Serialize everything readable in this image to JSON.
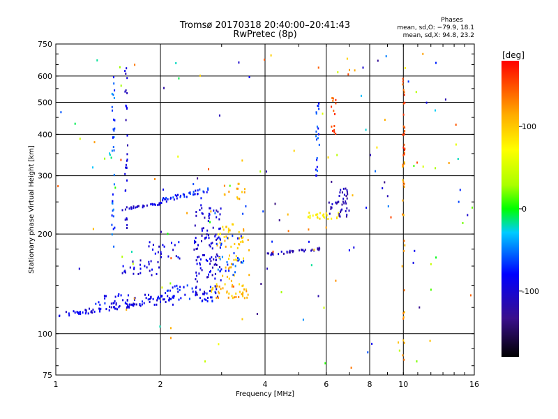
{
  "chart_data": {
    "type": "scatter",
    "title": "Tromsø 20170318 20:40:00–20:41:43",
    "subtitle": "RwPretec (8p)",
    "xlabel": "Frequency [MHz]",
    "ylabel": "Stationary phase Virtual Height [km]",
    "xscale": "log",
    "yscale": "log",
    "xlim": [
      1,
      16
    ],
    "ylim": [
      75,
      750
    ],
    "x_ticks": [
      1,
      2,
      4,
      6,
      8,
      10,
      16
    ],
    "y_ticks": [
      75,
      100,
      200,
      300,
      400,
      500,
      600,
      750
    ],
    "x_gridlines": [
      2,
      4,
      6,
      8,
      10
    ],
    "y_gridlines": [
      100,
      200,
      300,
      400,
      500,
      600
    ],
    "stats": {
      "title": "Phases",
      "line1": "mean, sd,O: −79.9, 18.1",
      "line2": "mean, sd,X: 94.8, 23.2"
    },
    "colorbar": {
      "label": "[deg]",
      "range": [
        -180,
        180
      ],
      "ticks": [
        -100,
        0,
        100
      ]
    },
    "point_groups": [
      {
        "x": [
          1.02,
          1.8
        ],
        "y": [
          112,
          125
        ],
        "phase": -95,
        "n": 60,
        "shape": "ramp"
      },
      {
        "x": [
          1.3,
          2.2
        ],
        "y": [
          122,
          132
        ],
        "phase": -88,
        "n": 60,
        "shape": "band"
      },
      {
        "x": [
          1.55,
          2.0
        ],
        "y": [
          150,
          168
        ],
        "phase": -95,
        "n": 25,
        "shape": "band"
      },
      {
        "x": [
          1.85,
          2.3
        ],
        "y": [
          165,
          190
        ],
        "phase": -90,
        "n": 20,
        "shape": "band"
      },
      {
        "x": [
          2.0,
          2.9
        ],
        "y": [
          125,
          140
        ],
        "phase": -80,
        "n": 50,
        "shape": "band"
      },
      {
        "x": [
          1.55,
          2.05
        ],
        "y": [
          236,
          250
        ],
        "phase": -100,
        "n": 30,
        "shape": "ramp"
      },
      {
        "x": [
          2.0,
          2.8
        ],
        "y": [
          248,
          278
        ],
        "phase": -75,
        "n": 40,
        "shape": "ramp"
      },
      {
        "x": [
          2.5,
          3.0
        ],
        "y": [
          128,
          245
        ],
        "phase": -100,
        "n": 110,
        "shape": "band"
      },
      {
        "x": [
          2.8,
          3.6
        ],
        "y": [
          128,
          140
        ],
        "phase": 110,
        "n": 40,
        "shape": "band"
      },
      {
        "x": [
          2.9,
          3.6
        ],
        "y": [
          140,
          215
        ],
        "phase": 100,
        "n": 60,
        "shape": "band"
      },
      {
        "x": [
          2.9,
          3.5
        ],
        "y": [
          150,
          200
        ],
        "phase": -60,
        "n": 30,
        "shape": "band"
      },
      {
        "x": [
          3.0,
          3.5
        ],
        "y": [
          255,
          285
        ],
        "phase": 110,
        "n": 14,
        "shape": "band"
      },
      {
        "x": [
          4.0,
          5.8
        ],
        "y": [
          172,
          182
        ],
        "phase": -110,
        "n": 35,
        "shape": "ramp"
      },
      {
        "x": [
          5.3,
          6.6
        ],
        "y": [
          222,
          232
        ],
        "phase": 80,
        "n": 25,
        "shape": "band"
      },
      {
        "x": [
          6.1,
          7.0
        ],
        "y": [
          225,
          275
        ],
        "phase": -115,
        "n": 40,
        "shape": "band"
      },
      {
        "x": [
          1.45,
          1.48
        ],
        "y": [
          180,
          640
        ],
        "phase": -60,
        "n": 35,
        "shape": "band"
      },
      {
        "x": [
          1.58,
          1.61
        ],
        "y": [
          200,
          640
        ],
        "phase": -100,
        "n": 30,
        "shape": "band"
      },
      {
        "x": [
          5.6,
          5.75
        ],
        "y": [
          300,
          500
        ],
        "phase": -70,
        "n": 22,
        "shape": "band"
      },
      {
        "x": [
          6.2,
          6.4
        ],
        "y": [
          400,
          520
        ],
        "phase": 150,
        "n": 14,
        "shape": "band"
      },
      {
        "x": [
          9.95,
          10.1
        ],
        "y": [
          340,
          600
        ],
        "phase": 155,
        "n": 22,
        "shape": "band"
      },
      {
        "x": [
          9.95,
          10.1
        ],
        "y": [
          78,
          340
        ],
        "phase": 120,
        "n": 25,
        "shape": "band"
      },
      {
        "x": [
          1.0,
          16.0
        ],
        "y": [
          76,
          700
        ],
        "phase": 0,
        "n": 150,
        "shape": "scatter"
      }
    ]
  }
}
